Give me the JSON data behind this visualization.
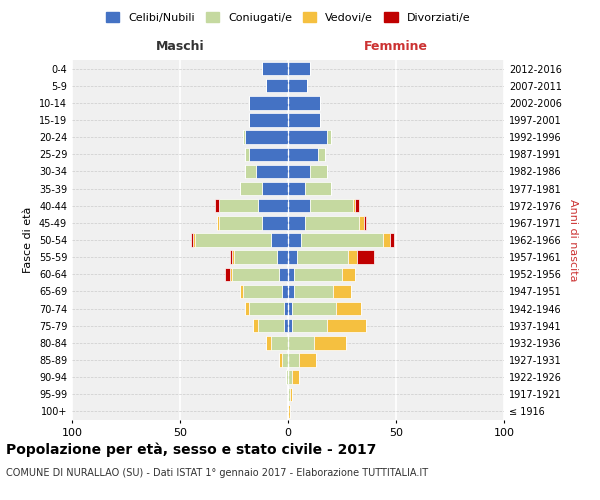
{
  "age_groups": [
    "100+",
    "95-99",
    "90-94",
    "85-89",
    "80-84",
    "75-79",
    "70-74",
    "65-69",
    "60-64",
    "55-59",
    "50-54",
    "45-49",
    "40-44",
    "35-39",
    "30-34",
    "25-29",
    "20-24",
    "15-19",
    "10-14",
    "5-9",
    "0-4"
  ],
  "birth_years": [
    "≤ 1916",
    "1917-1921",
    "1922-1926",
    "1927-1931",
    "1932-1936",
    "1937-1941",
    "1942-1946",
    "1947-1951",
    "1952-1956",
    "1957-1961",
    "1962-1966",
    "1967-1971",
    "1972-1976",
    "1977-1981",
    "1982-1986",
    "1987-1991",
    "1992-1996",
    "1997-2001",
    "2002-2006",
    "2007-2011",
    "2012-2016"
  ],
  "colors": {
    "celibi": "#4472C4",
    "coniugati": "#c5d9a0",
    "vedovi": "#f5c040",
    "divorziati": "#c00000"
  },
  "maschi": {
    "celibi": [
      0,
      0,
      0,
      0,
      0,
      2,
      2,
      3,
      4,
      5,
      8,
      12,
      14,
      12,
      15,
      18,
      20,
      18,
      18,
      10,
      12
    ],
    "coniugati": [
      0,
      0,
      1,
      3,
      8,
      12,
      16,
      18,
      22,
      20,
      35,
      20,
      18,
      10,
      5,
      2,
      1,
      0,
      0,
      0,
      0
    ],
    "vedovi": [
      0,
      0,
      0,
      1,
      2,
      2,
      2,
      1,
      1,
      1,
      1,
      1,
      0,
      0,
      0,
      0,
      0,
      0,
      0,
      0,
      0
    ],
    "divorziati": [
      0,
      0,
      0,
      0,
      0,
      0,
      0,
      0,
      2,
      1,
      1,
      0,
      2,
      0,
      0,
      0,
      0,
      0,
      0,
      0,
      0
    ]
  },
  "femmine": {
    "celibi": [
      0,
      0,
      0,
      0,
      0,
      2,
      2,
      3,
      3,
      4,
      6,
      8,
      10,
      8,
      10,
      14,
      18,
      15,
      15,
      9,
      10
    ],
    "coniugati": [
      0,
      1,
      2,
      5,
      12,
      16,
      20,
      18,
      22,
      24,
      38,
      25,
      20,
      12,
      8,
      3,
      2,
      0,
      0,
      0,
      0
    ],
    "vedovi": [
      1,
      1,
      3,
      8,
      15,
      18,
      12,
      8,
      6,
      4,
      3,
      2,
      1,
      0,
      0,
      0,
      0,
      0,
      0,
      0,
      0
    ],
    "divorziati": [
      0,
      0,
      0,
      0,
      0,
      0,
      0,
      0,
      0,
      8,
      2,
      1,
      2,
      0,
      0,
      0,
      0,
      0,
      0,
      0,
      0
    ]
  },
  "xlim": 100,
  "title": "Popolazione per età, sesso e stato civile - 2017",
  "subtitle": "COMUNE DI NURALLAO (SU) - Dati ISTAT 1° gennaio 2017 - Elaborazione TUTTITALIA.IT",
  "ylabel_left": "Fasce di età",
  "ylabel_right": "Anni di nascita",
  "header_left": "Maschi",
  "header_right": "Femmine",
  "legend_labels": [
    "Celibi/Nubili",
    "Coniugati/e",
    "Vedovi/e",
    "Divorziati/e"
  ],
  "background_color": "#f0f0f0"
}
